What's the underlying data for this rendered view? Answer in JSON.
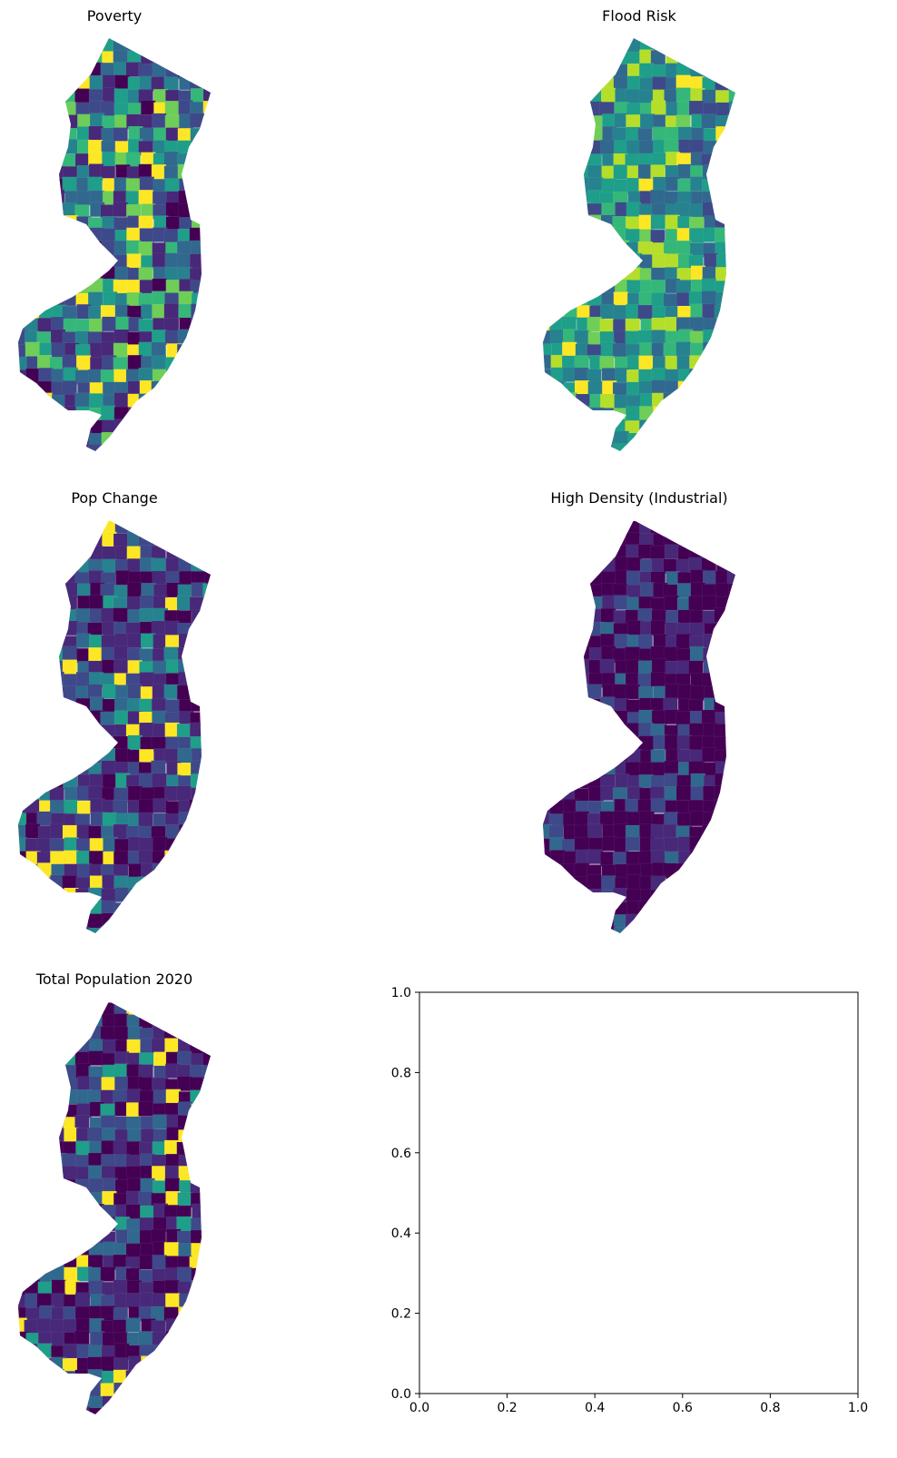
{
  "figure": {
    "panels": [
      {
        "title": "Poverty"
      },
      {
        "title": "Flood Risk"
      },
      {
        "title": "Pop Change"
      },
      {
        "title": "High Density (Industrial)"
      },
      {
        "title": "Total Population 2020"
      }
    ]
  },
  "colormap": {
    "name": "viridis",
    "stops": [
      "#440154",
      "#482878",
      "#3e4989",
      "#31688e",
      "#26828e",
      "#1f9e89",
      "#35b779",
      "#6ece58",
      "#b5de2b",
      "#fde725"
    ]
  },
  "chart_data": [
    {
      "type": "choropleth",
      "title": "Poverty",
      "region": "New Jersey",
      "color_scale": "viridis"
    },
    {
      "type": "choropleth",
      "title": "Flood Risk",
      "region": "New Jersey",
      "color_scale": "viridis"
    },
    {
      "type": "choropleth",
      "title": "Pop Change",
      "region": "New Jersey",
      "color_scale": "viridis"
    },
    {
      "type": "choropleth",
      "title": "High Density (Industrial)",
      "region": "New Jersey",
      "color_scale": "viridis"
    },
    {
      "type": "choropleth",
      "title": "Total Population 2020",
      "region": "New Jersey",
      "color_scale": "viridis"
    },
    {
      "type": "empty",
      "title": "",
      "xlim": [
        0.0,
        1.0
      ],
      "ylim": [
        0.0,
        1.0
      ],
      "xticks": [
        "0.0",
        "0.2",
        "0.4",
        "0.6",
        "0.8",
        "1.0"
      ],
      "yticks": [
        "0.0",
        "0.2",
        "0.4",
        "0.6",
        "0.8",
        "1.0"
      ],
      "series": []
    }
  ]
}
